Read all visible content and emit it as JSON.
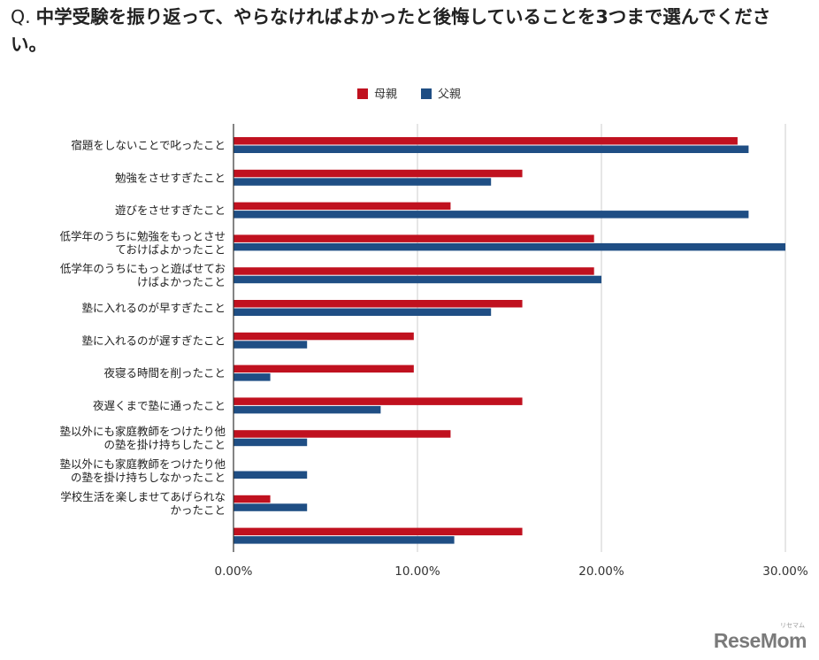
{
  "question": {
    "prefix": "Q.",
    "text": "中学受験を振り返って、やらなければよかったと後悔していることを3つまで選んでください。"
  },
  "logo": {
    "text": "ReseMom",
    "ruby": "リセマム"
  },
  "colors": {
    "mother": "#c0111f",
    "father": "#1f4e84",
    "grid": "#cccccc",
    "axis": "#333333"
  },
  "chart_data": {
    "type": "bar",
    "orientation": "horizontal",
    "legend_position": "top",
    "grid": true,
    "xlim": [
      0,
      30
    ],
    "x_ticks": [
      "0.00%",
      "10.00%",
      "20.00%",
      "30.00%"
    ],
    "categories": [
      [
        "宿題をしないことで叱ったこと"
      ],
      [
        "勉強をさせすぎたこと"
      ],
      [
        "遊びをさせすぎたこと"
      ],
      [
        "低学年のうちに勉強をもっとさせ",
        "ておけばよかったこと"
      ],
      [
        "低学年のうちにもっと遊ばせてお",
        "けばよかったこと"
      ],
      [
        "塾に入れるのが早すぎたこと"
      ],
      [
        "塾に入れるのが遅すぎたこと"
      ],
      [
        "夜寝る時間を削ったこと"
      ],
      [
        "夜遅くまで塾に通ったこと"
      ],
      [
        "塾以外にも家庭教師をつけたり他",
        "の塾を掛け持ちしたこと"
      ],
      [
        "塾以外にも家庭教師をつけたり他",
        "の塾を掛け持ちしなかったこと"
      ],
      [
        "学校生活を楽しませてあげられな",
        "かったこと"
      ],
      [
        ""
      ]
    ],
    "series": [
      {
        "name": "母親",
        "values": [
          27.4,
          15.7,
          11.8,
          19.6,
          19.6,
          15.7,
          9.8,
          9.8,
          15.7,
          11.8,
          0,
          2.0,
          15.7
        ]
      },
      {
        "name": "父親",
        "values": [
          28.0,
          14.0,
          28.0,
          30.0,
          20.0,
          14.0,
          4.0,
          2.0,
          8.0,
          4.0,
          4.0,
          4.0,
          12.0
        ]
      }
    ]
  }
}
